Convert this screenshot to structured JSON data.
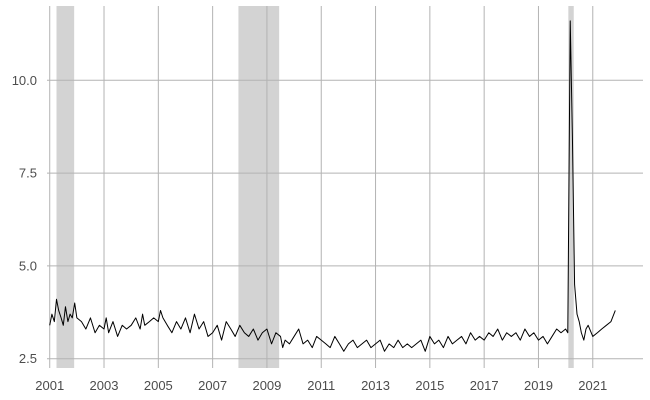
{
  "chart_data": {
    "type": "line",
    "title": "",
    "xlabel": "",
    "ylabel": "",
    "xlim": [
      2000.9,
      2022.85
    ],
    "ylim": [
      2.25,
      12.0
    ],
    "grid": true,
    "x_ticks": [
      2001,
      2003,
      2005,
      2007,
      2009,
      2011,
      2013,
      2015,
      2017,
      2019,
      2021
    ],
    "x_tick_labels": [
      "2001",
      "2003",
      "2005",
      "2007",
      "2009",
      "2011",
      "2013",
      "2015",
      "2017",
      "2019",
      "2021"
    ],
    "y_ticks": [
      2.5,
      5.0,
      7.5,
      10.0
    ],
    "y_tick_labels": [
      "2.5",
      "5.0",
      "7.5",
      "10.0"
    ],
    "shaded_periods": [
      {
        "start": 2001.25,
        "end": 2001.9
      },
      {
        "start": 2007.95,
        "end": 2009.45
      },
      {
        "start": 2020.1,
        "end": 2020.3
      }
    ],
    "colors": {
      "line": "#000000",
      "shade": "#d3d3d3",
      "grid": "#b3b3b3",
      "text": "#4d4d4d"
    },
    "series": [
      {
        "x": [
          2001.0,
          2001.08,
          2001.17,
          2001.25,
          2001.33,
          2001.42,
          2001.5,
          2001.58,
          2001.67,
          2001.75,
          2001.83,
          2001.92,
          2002.0,
          2002.17,
          2002.33,
          2002.5,
          2002.67,
          2002.83,
          2003.0,
          2003.08,
          2003.17,
          2003.33,
          2003.5,
          2003.67,
          2003.83,
          2004.0,
          2004.17,
          2004.33,
          2004.42,
          2004.5,
          2004.67,
          2004.83,
          2005.0,
          2005.08,
          2005.17,
          2005.33,
          2005.5,
          2005.67,
          2005.83,
          2006.0,
          2006.17,
          2006.33,
          2006.5,
          2006.67,
          2006.83,
          2007.0,
          2007.17,
          2007.33,
          2007.5,
          2007.67,
          2007.83,
          2008.0,
          2008.17,
          2008.33,
          2008.5,
          2008.67,
          2008.83,
          2009.0,
          2009.17,
          2009.33,
          2009.5,
          2009.58,
          2009.67,
          2009.83,
          2010.0,
          2010.17,
          2010.33,
          2010.5,
          2010.67,
          2010.83,
          2011.0,
          2011.17,
          2011.33,
          2011.5,
          2011.67,
          2011.83,
          2012.0,
          2012.17,
          2012.33,
          2012.5,
          2012.67,
          2012.83,
          2013.0,
          2013.17,
          2013.33,
          2013.5,
          2013.67,
          2013.83,
          2014.0,
          2014.17,
          2014.33,
          2014.5,
          2014.67,
          2014.83,
          2015.0,
          2015.17,
          2015.33,
          2015.5,
          2015.67,
          2015.83,
          2016.0,
          2016.17,
          2016.33,
          2016.5,
          2016.67,
          2016.83,
          2017.0,
          2017.17,
          2017.33,
          2017.5,
          2017.67,
          2017.83,
          2018.0,
          2018.17,
          2018.33,
          2018.5,
          2018.67,
          2018.83,
          2019.0,
          2019.17,
          2019.33,
          2019.5,
          2019.67,
          2019.83,
          2020.0,
          2020.08,
          2020.17,
          2020.25,
          2020.33,
          2020.42,
          2020.5,
          2020.58,
          2020.67,
          2020.75,
          2020.83,
          2021.0,
          2021.17,
          2021.33,
          2021.5,
          2021.67,
          2021.83
        ],
        "y": [
          3.4,
          3.7,
          3.5,
          4.1,
          3.8,
          3.6,
          3.4,
          3.9,
          3.5,
          3.7,
          3.6,
          4.0,
          3.6,
          3.5,
          3.3,
          3.6,
          3.2,
          3.4,
          3.3,
          3.6,
          3.2,
          3.5,
          3.1,
          3.4,
          3.3,
          3.4,
          3.6,
          3.3,
          3.7,
          3.4,
          3.5,
          3.6,
          3.5,
          3.8,
          3.6,
          3.4,
          3.2,
          3.5,
          3.3,
          3.6,
          3.2,
          3.7,
          3.3,
          3.5,
          3.1,
          3.2,
          3.4,
          3.0,
          3.5,
          3.3,
          3.1,
          3.4,
          3.2,
          3.1,
          3.3,
          3.0,
          3.2,
          3.3,
          2.9,
          3.2,
          3.1,
          2.8,
          3.0,
          2.9,
          3.1,
          3.3,
          2.9,
          3.0,
          2.8,
          3.1,
          3.0,
          2.9,
          2.8,
          3.1,
          2.9,
          2.7,
          2.9,
          3.0,
          2.8,
          2.9,
          3.0,
          2.8,
          2.9,
          3.0,
          2.7,
          2.9,
          2.8,
          3.0,
          2.8,
          2.9,
          2.8,
          2.9,
          3.0,
          2.7,
          3.1,
          2.9,
          3.0,
          2.8,
          3.1,
          2.9,
          3.0,
          3.1,
          2.9,
          3.2,
          3.0,
          3.1,
          3.0,
          3.2,
          3.1,
          3.3,
          3.0,
          3.2,
          3.1,
          3.2,
          3.0,
          3.3,
          3.1,
          3.2,
          3.0,
          3.1,
          2.9,
          3.1,
          3.3,
          3.2,
          3.3,
          3.2,
          11.6,
          8.5,
          4.5,
          3.7,
          3.5,
          3.2,
          3.0,
          3.3,
          3.4,
          3.1,
          3.2,
          3.3,
          3.4,
          3.5,
          3.8
        ]
      }
    ]
  }
}
